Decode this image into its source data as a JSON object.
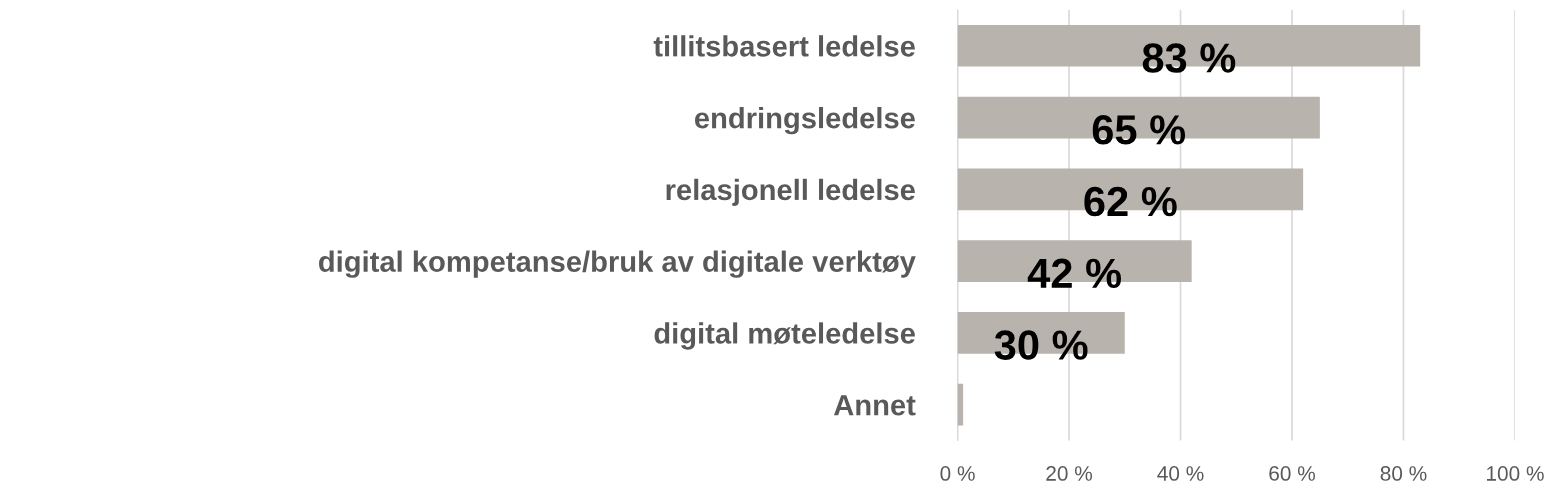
{
  "chart_data": {
    "type": "bar",
    "orientation": "horizontal",
    "categories": [
      "tillitsbasert ledelse",
      "endringsledelse",
      "relasjonell ledelse",
      "digital kompetanse/bruk av digitale verktøy",
      "digital møteledelse",
      "Annet"
    ],
    "values": [
      83,
      65,
      62,
      42,
      30,
      1
    ],
    "value_labels": [
      "83 %",
      "65 %",
      "62 %",
      "42 %",
      "30 %",
      null
    ],
    "color": "#b8b3ac",
    "xlim": [
      0,
      100
    ],
    "xticks": [
      {
        "value": 0,
        "label": "0 %"
      },
      {
        "value": 20,
        "label": "20 %"
      },
      {
        "value": 40,
        "label": "40 %"
      },
      {
        "value": 60,
        "label": "60 %"
      },
      {
        "value": 80,
        "label": "80 %"
      },
      {
        "value": 100,
        "label": "100 %"
      }
    ],
    "grid": "x",
    "legend": false
  }
}
